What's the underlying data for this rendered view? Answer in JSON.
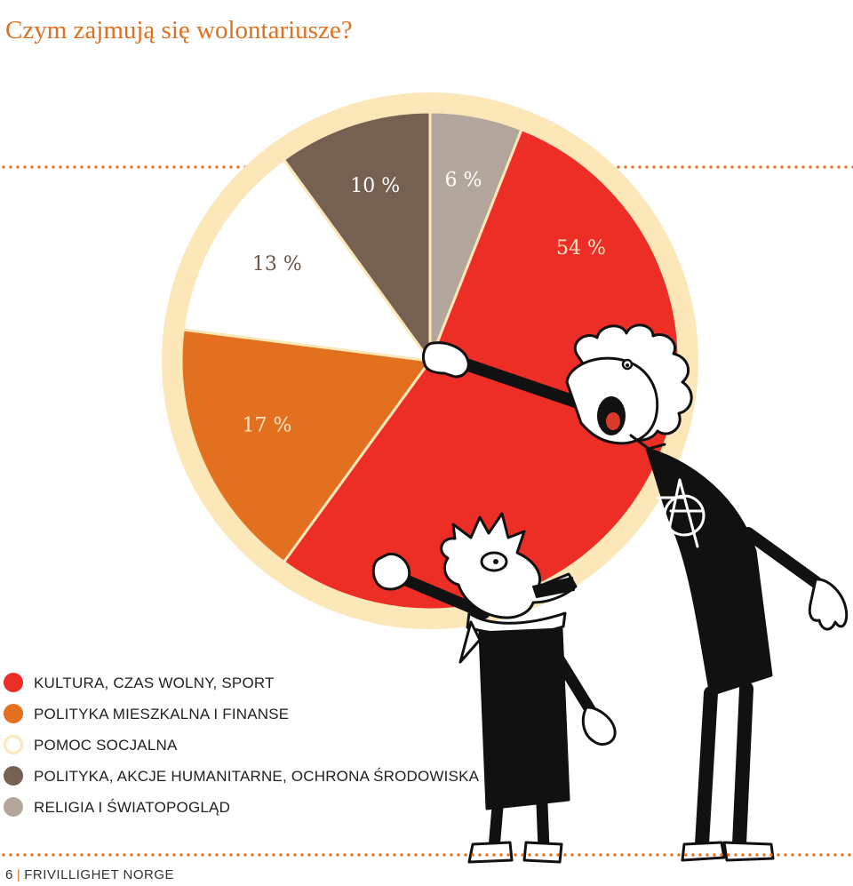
{
  "page": {
    "title": "Czym zajmują się wolontariusze?",
    "footer_page": "6",
    "footer_text": "FRIVILLIGHET NORGE"
  },
  "colors": {
    "accent": "#e07020",
    "ring": "#fbe7b8",
    "culture": "#ec2e27",
    "politics_housing": "#e3701f",
    "social": "#ffffff",
    "politics_humanitarian": "#766052",
    "religion": "#b3a69a"
  },
  "chart_data": {
    "type": "pie",
    "title": "Czym zajmują się wolontariusze?",
    "slices": [
      {
        "label": "RELIGIA I ŚWIATOPOGLĄD",
        "value": 6,
        "value_label": "6 %",
        "color": "#b3a69a"
      },
      {
        "label": "KULTURA, CZAS WOLNY, SPORT",
        "value": 54,
        "value_label": "54 %",
        "color": "#ec2e27"
      },
      {
        "label": "POLITYKA MIESZKALNA I FINANSE",
        "value": 17,
        "value_label": "17 %",
        "color": "#e3701f"
      },
      {
        "label": "POMOC SOCJALNA",
        "value": 13,
        "value_label": "13 %",
        "color": "#ffffff"
      },
      {
        "label": "POLITYKA, AKCJE HUMANITARNE, OCHRONA ŚRODOWISKA",
        "value": 10,
        "value_label": "10 %",
        "color": "#766052"
      }
    ],
    "legend": [
      {
        "label": "KULTURA, CZAS WOLNY, SPORT",
        "color": "#ec2e27"
      },
      {
        "label": "POLITYKA MIESZKALNA I FINANSE",
        "color": "#e3701f"
      },
      {
        "label": "POMOC SOCJALNA",
        "color": "#ffffff"
      },
      {
        "label": "POLITYKA, AKCJE HUMANITARNE, OCHRONA ŚRODOWISKA",
        "color": "#766052"
      },
      {
        "label": "RELIGIA I ŚWIATOPOGLĄD",
        "color": "#b3a69a"
      }
    ],
    "legend_position": "bottom-left"
  }
}
